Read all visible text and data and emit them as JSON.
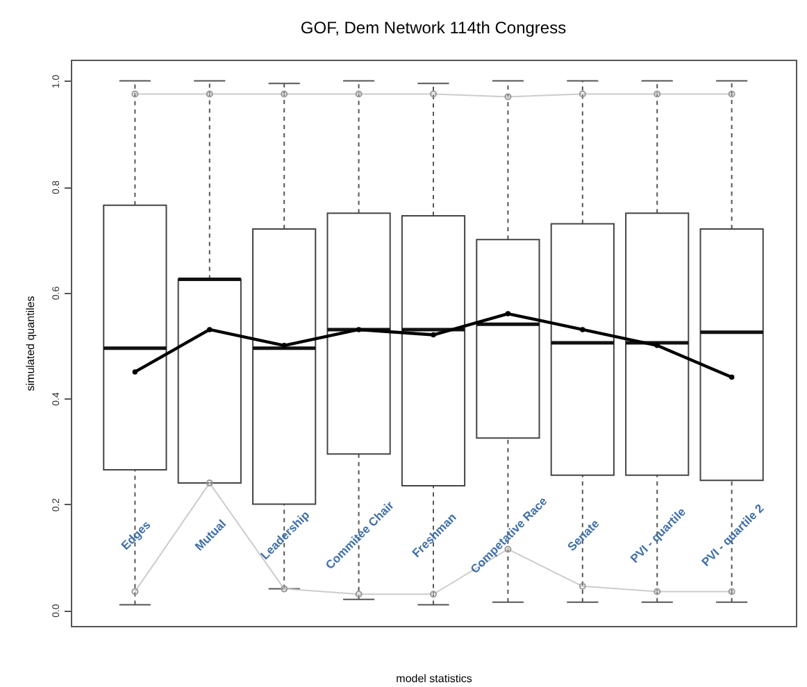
{
  "chart_data": {
    "type": "box",
    "title": "GOF, Dem Network 114th Congress",
    "xlabel": "model statistics",
    "ylabel": "simulated quantiles",
    "categories": [
      "Edges",
      "Mutual",
      "Leadership",
      "Commitee Chair",
      "Freshman",
      "Competative Race",
      "Senate",
      "PVI - quartile",
      "PVI - quartile 2"
    ],
    "series": [
      {
        "type": "box",
        "color": "#ffffff",
        "boxes": [
          {
            "low": 0.01,
            "q1": 0.265,
            "median": 0.495,
            "q3": 0.765,
            "high": 1.0
          },
          {
            "low": 0.24,
            "q1": 0.24,
            "median": 0.625,
            "q3": 0.625,
            "high": 1.0
          },
          {
            "low": 0.04,
            "q1": 0.2,
            "median": 0.495,
            "q3": 0.72,
            "high": 0.995
          },
          {
            "low": 0.02,
            "q1": 0.295,
            "median": 0.53,
            "q3": 0.75,
            "high": 1.0
          },
          {
            "low": 0.01,
            "q1": 0.235,
            "median": 0.53,
            "q3": 0.745,
            "high": 0.995
          },
          {
            "low": 0.015,
            "q1": 0.325,
            "median": 0.54,
            "q3": 0.7,
            "high": 1.0
          },
          {
            "low": 0.015,
            "q1": 0.255,
            "median": 0.505,
            "q3": 0.73,
            "high": 1.0
          },
          {
            "low": 0.015,
            "q1": 0.255,
            "median": 0.505,
            "q3": 0.75,
            "high": 1.0
          },
          {
            "low": 0.015,
            "q1": 0.245,
            "median": 0.525,
            "q3": 0.72,
            "high": 1.0
          }
        ]
      },
      {
        "type": "line",
        "color": "#cccccc",
        "marker": "circle",
        "values": [
          0.975,
          0.975,
          0.975,
          0.975,
          0.975,
          0.97,
          0.975,
          0.975,
          0.975
        ]
      },
      {
        "type": "line",
        "color": "#cccccc",
        "marker": "circle",
        "values": [
          0.035,
          0.24,
          0.04,
          0.03,
          0.03,
          0.115,
          0.045,
          0.035,
          0.035
        ]
      },
      {
        "type": "line",
        "color": "#000000",
        "marker": "circle",
        "values": [
          0.45,
          0.53,
          0.5,
          0.53,
          0.52,
          0.56,
          0.53,
          0.5,
          0.44
        ]
      }
    ],
    "ylim": [
      -0.03,
      1.04
    ],
    "yticks": [
      {
        "value": 0,
        "label": "0.0"
      },
      0.2,
      0.4,
      0.6,
      0.8,
      {
        "value": 1,
        "label": "1.0"
      }
    ],
    "grid": false
  }
}
